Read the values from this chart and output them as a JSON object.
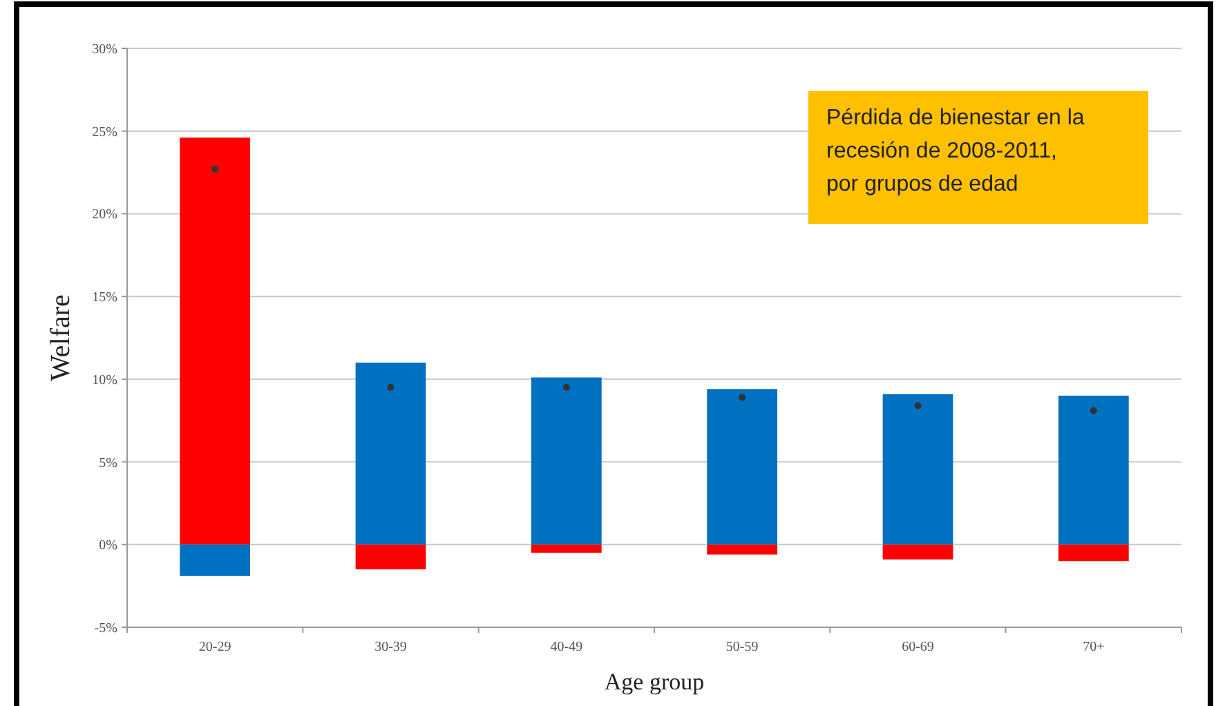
{
  "chart_data": {
    "type": "bar",
    "stacked": true,
    "xlabel": "Age group",
    "ylabel": "Welfare",
    "categories": [
      "20-29",
      "30-39",
      "40-49",
      "50-59",
      "60-69",
      "70+"
    ],
    "series": [
      {
        "color": "#ff0000",
        "values": [
          24.6,
          -1.5,
          -0.5,
          -0.6,
          -0.9,
          -1.0
        ]
      },
      {
        "color": "#0070c0",
        "values": [
          -1.9,
          11.0,
          10.1,
          9.4,
          9.1,
          9.0
        ]
      },
      {
        "type": "scatter",
        "color": "#333333",
        "values": [
          22.7,
          9.5,
          9.5,
          8.9,
          8.4,
          8.1
        ]
      }
    ],
    "ylim": [
      -5,
      30
    ],
    "yticks": [
      {
        "value": -5,
        "label": "-5%"
      },
      {
        "value": 0,
        "label": "0%"
      },
      {
        "value": 5,
        "label": "5%"
      },
      {
        "value": 10,
        "label": "10%"
      },
      {
        "value": 15,
        "label": "15%"
      },
      {
        "value": 20,
        "label": "20%"
      },
      {
        "value": 25,
        "label": "25%"
      },
      {
        "value": 30,
        "label": "30%"
      }
    ],
    "grid": "y",
    "marker": "circle",
    "annotations": [
      "Pérdida de bienestar en la\nrecesión de 2008-2011,\npor grupos de edad"
    ]
  }
}
